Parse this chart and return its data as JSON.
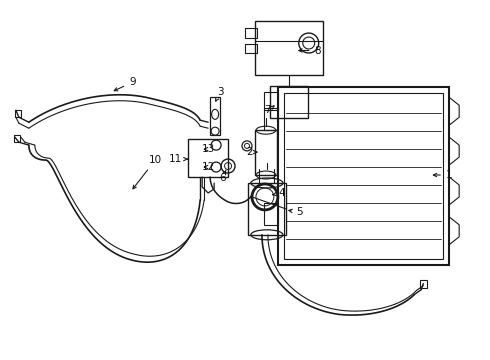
{
  "background_color": "#ffffff",
  "line_color": "#1a1a1a",
  "text_color": "#111111",
  "figsize": [
    4.9,
    3.6
  ],
  "dpi": 100,
  "xlim": [
    0,
    490
  ],
  "ylim": [
    0,
    360
  ]
}
